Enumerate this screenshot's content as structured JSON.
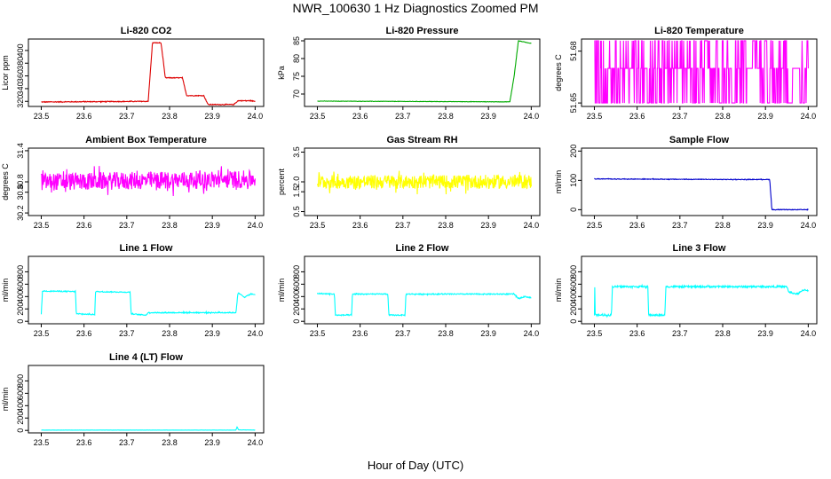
{
  "page": {
    "title": "NWR_100630  1 Hz Diagnostics Zoomed PM",
    "x_axis_label": "Hour of Day (UTC)"
  },
  "chart_data": [
    {
      "id": "li820-co2",
      "type": "line",
      "title": "Li-820 CO2",
      "ylabel": "Licor ppm",
      "color": "#dd0000",
      "xlim": [
        23.47,
        24.02
      ],
      "ylim": [
        312,
        418
      ],
      "xticks": [
        "23.5",
        "23.6",
        "23.7",
        "23.8",
        "23.9",
        "24.0"
      ],
      "yticks": [
        "320",
        "340",
        "360",
        "380",
        "400"
      ],
      "x": [
        23.5,
        23.75,
        23.76,
        23.78,
        23.79,
        23.83,
        23.84,
        23.88,
        23.89,
        23.95,
        23.96,
        23.99,
        24.0
      ],
      "y": [
        319,
        320,
        412,
        412,
        357,
        357,
        329,
        329,
        315,
        315,
        321,
        321,
        320
      ],
      "noise": 0.6
    },
    {
      "id": "li820-pressure",
      "type": "line",
      "title": "Li-820 Pressure",
      "ylabel": "kPa",
      "color": "#00aa00",
      "xlim": [
        23.47,
        24.02
      ],
      "ylim": [
        66.5,
        85.5
      ],
      "xticks": [
        "23.5",
        "23.6",
        "23.7",
        "23.8",
        "23.9",
        "24.0"
      ],
      "yticks": [
        "70",
        "75",
        "80",
        "85"
      ],
      "x": [
        23.5,
        23.945,
        23.95,
        23.96,
        23.97,
        23.99,
        24.0
      ],
      "y": [
        68.0,
        67.8,
        67.8,
        75,
        85,
        84.5,
        84.3
      ],
      "noise": 0.05
    },
    {
      "id": "li820-temperature",
      "type": "line",
      "title": "Li-820 Temperature",
      "ylabel": "degrees C",
      "color": "#ff00ff",
      "xlim": [
        23.47,
        24.02
      ],
      "ylim": [
        51.648,
        51.687
      ],
      "xticks": [
        "23.5",
        "23.6",
        "23.7",
        "23.8",
        "23.9",
        "24.0"
      ],
      "yticks": [
        "51.65",
        "51.68"
      ],
      "x": [
        23.5,
        24.0
      ],
      "y": [
        51.67,
        51.67
      ],
      "levels": [
        51.65,
        51.67,
        51.686
      ],
      "toggle": true
    },
    {
      "id": "ambient-box-temperature",
      "type": "line",
      "title": "Ambient Box Temperature",
      "ylabel": "degrees C",
      "color": "#ff00ff",
      "xlim": [
        23.47,
        24.02
      ],
      "ylim": [
        30.15,
        31.45
      ],
      "xticks": [
        "23.5",
        "23.6",
        "23.7",
        "23.8",
        "23.9",
        "24.0"
      ],
      "yticks": [
        "30.2",
        "30.6",
        "30.8",
        "31.4"
      ],
      "x": [
        23.5,
        24.0
      ],
      "y": [
        30.8,
        30.85
      ],
      "noise": 0.17
    },
    {
      "id": "gas-stream-rh",
      "type": "line",
      "title": "Gas Stream RH",
      "ylabel": "percent",
      "color": "#ffff00",
      "xlim": [
        23.47,
        24.02
      ],
      "ylim": [
        0.3,
        3.7
      ],
      "xticks": [
        "23.5",
        "23.6",
        "23.7",
        "23.8",
        "23.9",
        "24.0"
      ],
      "yticks": [
        "0.5",
        "1.5",
        "2.0",
        "3.5"
      ],
      "x": [
        23.5,
        24.0
      ],
      "y": [
        2.0,
        2.0
      ],
      "noise": 0.35
    },
    {
      "id": "sample-flow",
      "type": "line",
      "title": "Sample Flow",
      "ylabel": "ml/min",
      "color": "#0000cc",
      "xlim": [
        23.47,
        24.02
      ],
      "ylim": [
        -20,
        210
      ],
      "xticks": [
        "23.5",
        "23.6",
        "23.7",
        "23.8",
        "23.9",
        "24.0"
      ],
      "yticks": [
        "0",
        "100",
        "200"
      ],
      "x": [
        23.5,
        23.8,
        23.91,
        23.915,
        23.92,
        24.0
      ],
      "y": [
        105,
        103,
        103,
        0,
        0,
        0
      ],
      "noise": 1
    },
    {
      "id": "line-1-flow",
      "type": "line",
      "title": "Line 1 Flow",
      "ylabel": "ml/min",
      "color": "#00ffff",
      "xlim": [
        23.47,
        24.02
      ],
      "ylim": [
        -40,
        1050
      ],
      "xticks": [
        "23.5",
        "23.6",
        "23.7",
        "23.8",
        "23.9",
        "24.0"
      ],
      "yticks": [
        "0",
        "200",
        "400",
        "600",
        "800"
      ],
      "x": [
        23.5,
        23.503,
        23.58,
        23.582,
        23.625,
        23.627,
        23.708,
        23.71,
        23.745,
        23.75,
        23.955,
        23.96,
        23.975,
        23.99,
        24.0
      ],
      "y": [
        120,
        490,
        480,
        120,
        110,
        480,
        470,
        120,
        100,
        140,
        140,
        460,
        390,
        440,
        430
      ],
      "noise": 8
    },
    {
      "id": "line-2-flow",
      "type": "line",
      "title": "Line 2 Flow",
      "ylabel": "ml/min",
      "color": "#00ffff",
      "xlim": [
        23.47,
        24.02
      ],
      "ylim": [
        -40,
        1050
      ],
      "xticks": [
        "23.5",
        "23.6",
        "23.7",
        "23.8",
        "23.9",
        "24.0"
      ],
      "yticks": [
        "0",
        "200",
        "400",
        "600",
        "800"
      ],
      "x": [
        23.5,
        23.54,
        23.542,
        23.58,
        23.582,
        23.665,
        23.667,
        23.705,
        23.707,
        23.96,
        23.97,
        23.985,
        24.0
      ],
      "y": [
        450,
        440,
        100,
        100,
        440,
        440,
        100,
        100,
        440,
        440,
        370,
        400,
        380
      ],
      "noise": 8
    },
    {
      "id": "line-3-flow",
      "type": "line",
      "title": "Line 3 Flow",
      "ylabel": "ml/min",
      "color": "#00ffff",
      "xlim": [
        23.47,
        24.02
      ],
      "ylim": [
        -40,
        1050
      ],
      "xticks": [
        "23.5",
        "23.6",
        "23.7",
        "23.8",
        "23.9",
        "24.0"
      ],
      "yticks": [
        "0",
        "200",
        "400",
        "600",
        "800"
      ],
      "x": [
        23.5,
        23.501,
        23.502,
        23.54,
        23.542,
        23.625,
        23.627,
        23.665,
        23.667,
        23.95,
        23.955,
        23.975,
        23.99,
        24.0
      ],
      "y": [
        100,
        570,
        100,
        100,
        560,
        560,
        100,
        100,
        560,
        560,
        470,
        440,
        510,
        500
      ],
      "noise": 14
    },
    {
      "id": "line-4-lt-flow",
      "type": "line",
      "title": "Line 4 (LT) Flow",
      "ylabel": "ml/min",
      "color": "#00ffff",
      "xlim": [
        23.47,
        24.02
      ],
      "ylim": [
        -40,
        1050
      ],
      "xticks": [
        "23.5",
        "23.6",
        "23.7",
        "23.8",
        "23.9",
        "24.0"
      ],
      "yticks": [
        "0",
        "200",
        "400",
        "600",
        "800"
      ],
      "x": [
        23.5,
        23.955,
        23.958,
        23.961,
        24.0
      ],
      "y": [
        5,
        5,
        60,
        8,
        6
      ],
      "noise": 1
    }
  ]
}
